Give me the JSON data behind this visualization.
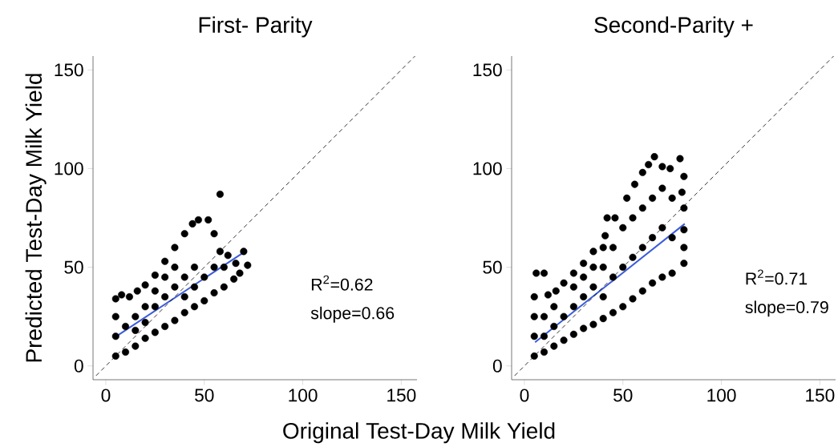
{
  "chart_data": [
    {
      "type": "scatter",
      "title": "First- Parity",
      "xlabel": "Original Test-Day Milk Yield",
      "ylabel": "Predicted Test-Day Milk Yield",
      "xlim": [
        -6.5,
        158
      ],
      "ylim": [
        -7,
        157
      ],
      "xticks": [
        0,
        50,
        100,
        150
      ],
      "yticks": [
        0,
        50,
        100,
        150
      ],
      "annotations": [
        "R$^{2}$=0.62",
        "slope=0.66"
      ],
      "series": [
        {
          "marker": "circle",
          "color": "#000000",
          "x": [
            5,
            5,
            5,
            5,
            8,
            12,
            16,
            20,
            25,
            30,
            35,
            40,
            44,
            47,
            52,
            55,
            58,
            62,
            66,
            70,
            72,
            68,
            65,
            60,
            55,
            50,
            45,
            40,
            35,
            30,
            25,
            20,
            15,
            10,
            10,
            15,
            20,
            25,
            30,
            35,
            40,
            45,
            50,
            55,
            35,
            30,
            25,
            15,
            20,
            40,
            45,
            60,
            58
          ],
          "values": [
            5,
            15,
            25,
            34,
            36,
            35,
            38,
            41,
            46,
            53,
            60,
            67,
            72,
            74,
            74,
            67,
            58,
            56,
            52,
            58,
            51,
            47,
            44,
            40,
            37,
            33,
            30,
            27,
            23,
            20,
            17,
            14,
            10,
            7,
            20,
            25,
            30,
            30,
            35,
            40,
            45,
            50,
            45,
            50,
            50,
            45,
            38,
            18,
            22,
            35,
            40,
            50,
            87
          ]
        },
        {
          "type": "line",
          "color": "#3b5bdb",
          "line_style": "solid",
          "x": [
            5.3,
            71.5
          ],
          "values": [
            15,
            58.5
          ]
        },
        {
          "type": "line",
          "color": "#000000",
          "line_style": "dashed",
          "x": [
            -5,
            157
          ],
          "values": [
            -5,
            157
          ]
        }
      ]
    },
    {
      "type": "scatter",
      "title": "Second-Parity +",
      "xlim": [
        -6.5,
        158
      ],
      "ylim": [
        -7,
        157
      ],
      "xticks": [
        0,
        50,
        100,
        150
      ],
      "yticks": [
        0,
        50,
        100,
        150
      ],
      "annotations": [
        "R$^{2}$=0.71",
        "slope=0.79"
      ],
      "series": [
        {
          "marker": "circle",
          "color": "#000000",
          "x": [
            5,
            5,
            5,
            5,
            6,
            10,
            12,
            16,
            20,
            25,
            30,
            35,
            41,
            46,
            52,
            56,
            60,
            63,
            66,
            70,
            74,
            79,
            81,
            80,
            81,
            81,
            81,
            81,
            75,
            70,
            65,
            60,
            55,
            50,
            45,
            40,
            35,
            30,
            25,
            20,
            15,
            10,
            10,
            10,
            15,
            15,
            20,
            25,
            25,
            30,
            30,
            35,
            35,
            40,
            40,
            40,
            45,
            45,
            50,
            50,
            55,
            55,
            60,
            60,
            65,
            65,
            70,
            70,
            75,
            75,
            42
          ],
          "values": [
            5,
            15,
            25,
            35,
            47,
            47,
            36,
            38,
            42,
            47,
            52,
            58,
            66,
            75,
            85,
            92,
            98,
            102,
            106,
            101,
            100,
            105,
            96,
            88,
            80,
            69,
            60,
            52,
            47,
            45,
            42,
            38,
            34,
            30,
            27,
            24,
            21,
            19,
            16,
            13,
            10,
            7,
            15,
            25,
            20,
            30,
            25,
            30,
            40,
            35,
            45,
            40,
            50,
            35,
            50,
            60,
            45,
            60,
            50,
            70,
            55,
            75,
            60,
            80,
            65,
            85,
            70,
            90,
            65,
            85,
            75
          ]
        },
        {
          "type": "line",
          "color": "#3b5bdb",
          "line_style": "solid",
          "x": [
            5.4,
            81.4
          ],
          "values": [
            12,
            72
          ]
        },
        {
          "type": "line",
          "color": "#000000",
          "line_style": "dashed",
          "x": [
            -5,
            157
          ],
          "values": [
            -5,
            157
          ]
        }
      ]
    }
  ]
}
